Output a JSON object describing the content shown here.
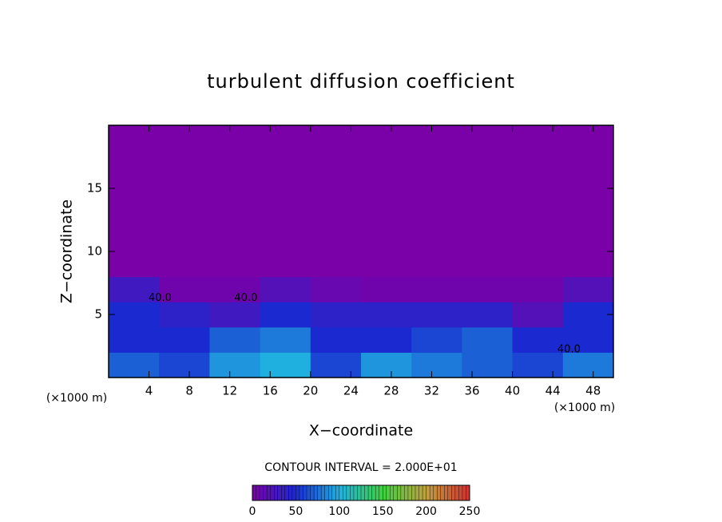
{
  "chart_data": {
    "type": "contour",
    "title": "turbulent diffusion coefficient",
    "xlabel": "X−coordinate",
    "ylabel": "Z−coordinate",
    "xunit": "(×1000 m)",
    "yunit": "(×1000 m)",
    "xlim": [
      0,
      50
    ],
    "ylim": [
      0,
      20
    ],
    "xticks": [
      4,
      8,
      12,
      16,
      20,
      24,
      28,
      32,
      36,
      40,
      44,
      48
    ],
    "yticks": [
      5,
      10,
      15
    ],
    "xedges": [
      0,
      5,
      10,
      15,
      20,
      25,
      30,
      35,
      40,
      45,
      50
    ],
    "yedges": [
      0,
      2,
      4,
      6,
      8,
      20
    ],
    "z": [
      [
        70,
        60,
        90,
        100,
        60,
        90,
        80,
        70,
        60,
        80
      ],
      [
        50,
        50,
        70,
        80,
        50,
        50,
        60,
        70,
        50,
        50
      ],
      [
        50,
        40,
        30,
        50,
        40,
        40,
        40,
        40,
        20,
        50
      ],
      [
        30,
        5,
        5,
        20,
        10,
        5,
        5,
        5,
        5,
        20
      ],
      [
        0,
        0,
        0,
        0,
        0,
        0,
        0,
        0,
        0,
        0
      ]
    ],
    "contour_labels": [
      {
        "x": 5.1,
        "y": 6.3,
        "text": "40.0"
      },
      {
        "x": 13.6,
        "y": 6.3,
        "text": "40.0"
      },
      {
        "x": 45.6,
        "y": 2.2,
        "text": "40.0"
      }
    ],
    "contour_interval": "CONTOUR INTERVAL = 2.000E+01",
    "clim": [
      0,
      250
    ],
    "cticks": [
      0,
      50,
      100,
      150,
      200,
      250
    ],
    "colormap": [
      "#7a00a8",
      "#1a2ad0",
      "#20b0e0",
      "#40d040",
      "#c0a040",
      "#d03030"
    ]
  }
}
